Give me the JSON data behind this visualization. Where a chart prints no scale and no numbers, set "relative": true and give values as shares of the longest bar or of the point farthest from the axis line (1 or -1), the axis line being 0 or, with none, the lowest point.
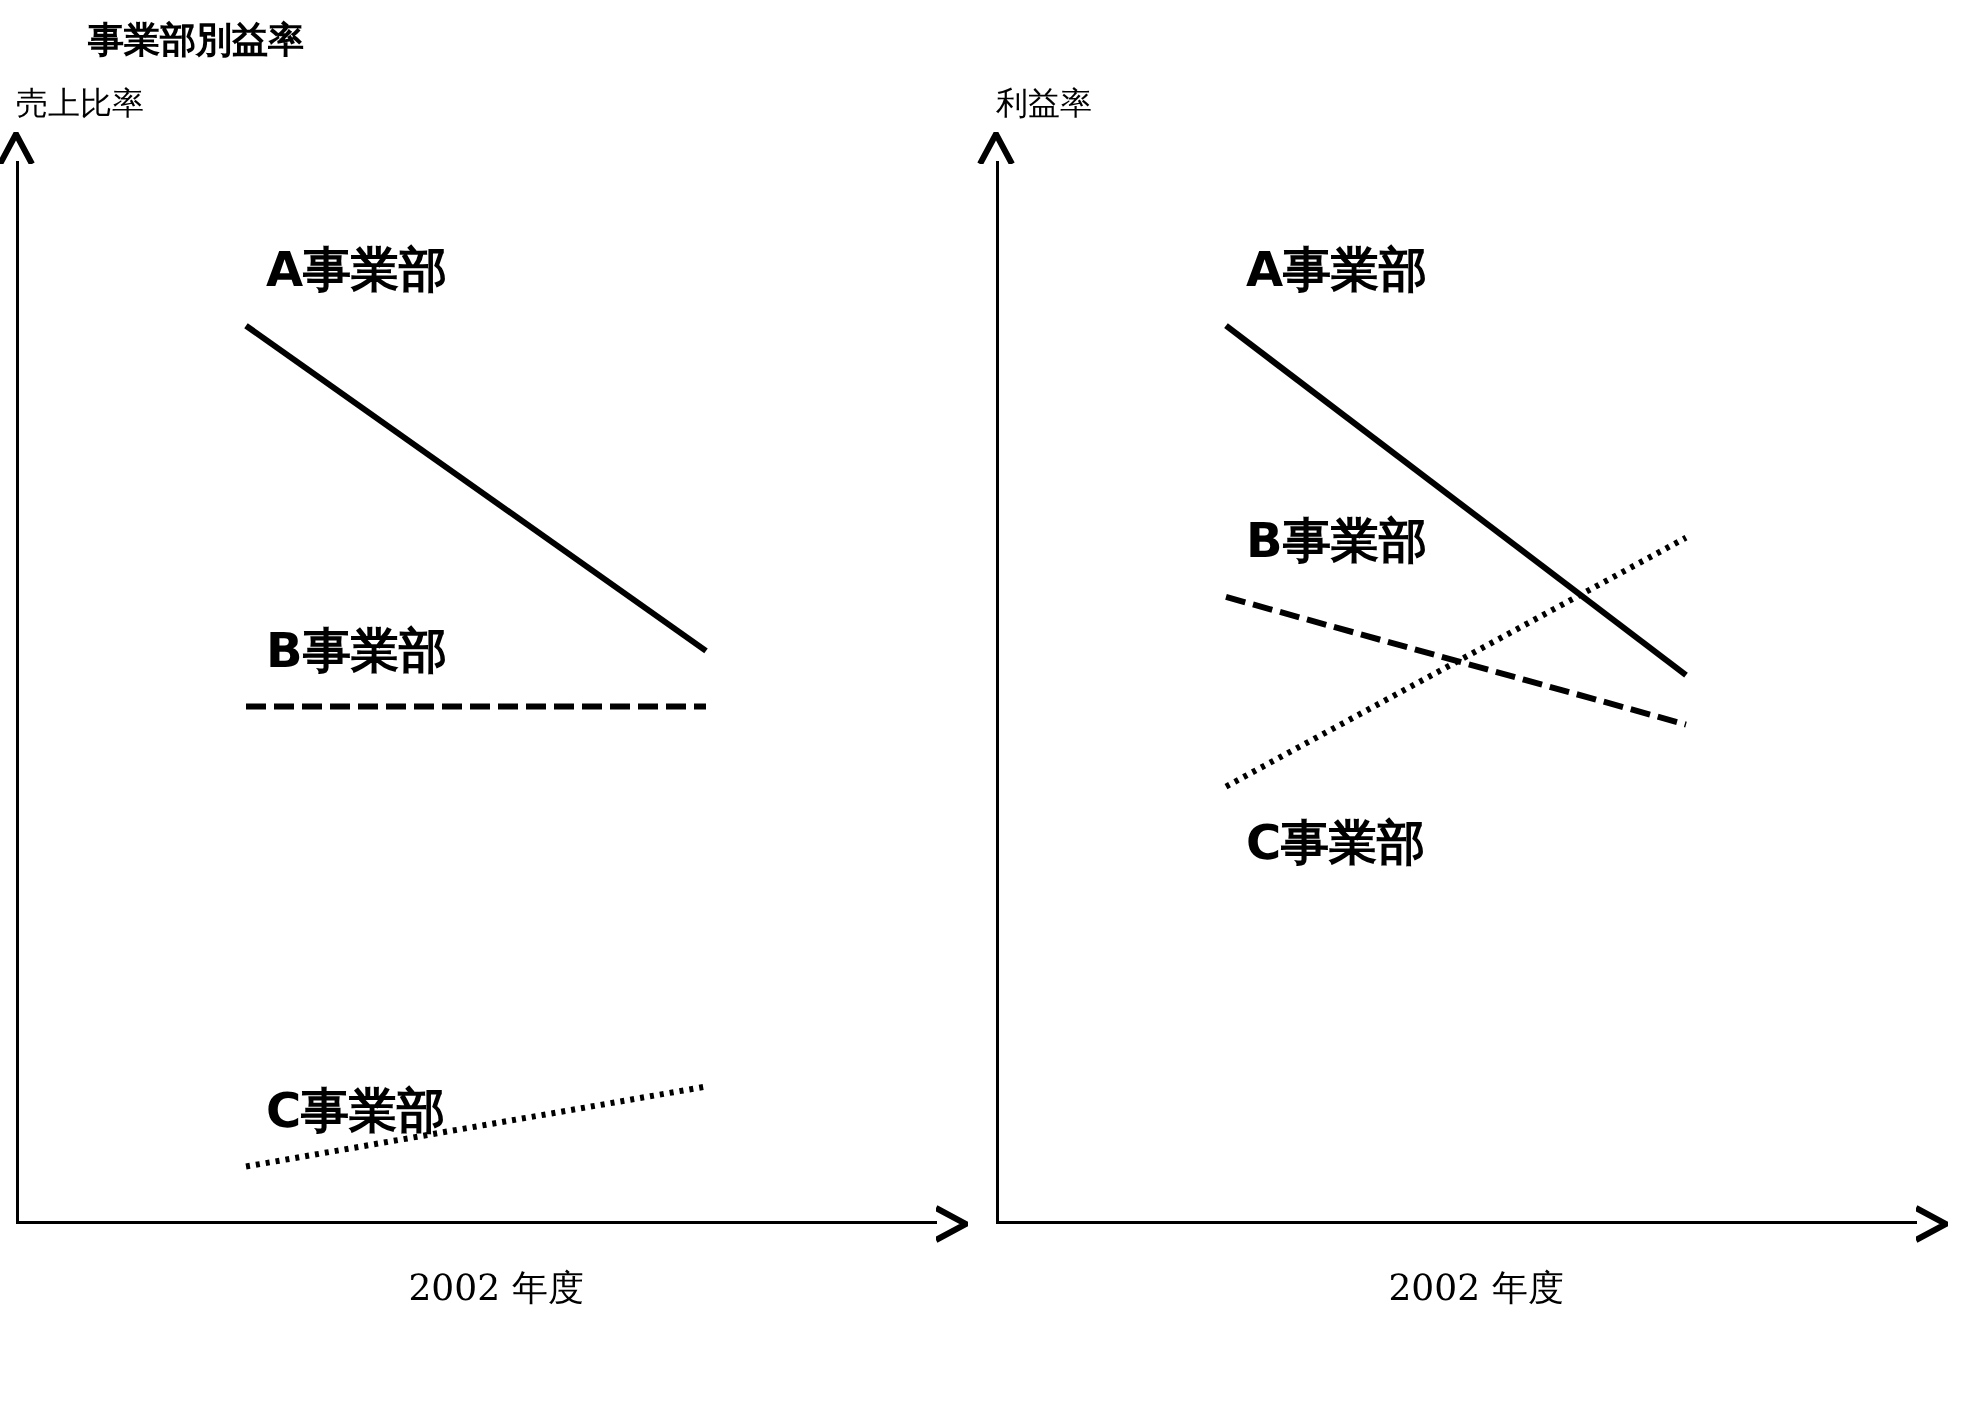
{
  "chart_data": [
    {
      "type": "line",
      "title": "事業部別益率",
      "ylabel": "売上比率",
      "xlabel": "2002 年度",
      "categories": [
        null,
        null
      ],
      "relative": true,
      "marker": "none",
      "legend": false,
      "grid": false,
      "series": [
        {
          "name": "A事業部",
          "color": "#000000",
          "line_style": "solid",
          "values": [
            1,
            0.638
          ]
        },
        {
          "name": "B事業部",
          "color": "#000000",
          "line_style": "dashed",
          "values": [
            0.576,
            0.576
          ]
        },
        {
          "name": "C事業部",
          "color": "#000000",
          "line_style": "dotted",
          "values": [
            0.064,
            0.153
          ]
        }
      ]
    },
    {
      "type": "line",
      "ylabel": "利益率",
      "xlabel": "2002 年度",
      "categories": [
        null,
        null
      ],
      "relative": true,
      "marker": "none",
      "legend": false,
      "grid": false,
      "series": [
        {
          "name": "A事業部",
          "color": "#000000",
          "line_style": "solid",
          "values": [
            1,
            0.611
          ]
        },
        {
          "name": "B事業部",
          "color": "#000000",
          "line_style": "dashed",
          "values": [
            0.698,
            0.556
          ]
        },
        {
          "name": "C事業部",
          "color": "#000000",
          "line_style": "dotted",
          "values": [
            0.487,
            0.764
          ]
        }
      ]
    }
  ]
}
